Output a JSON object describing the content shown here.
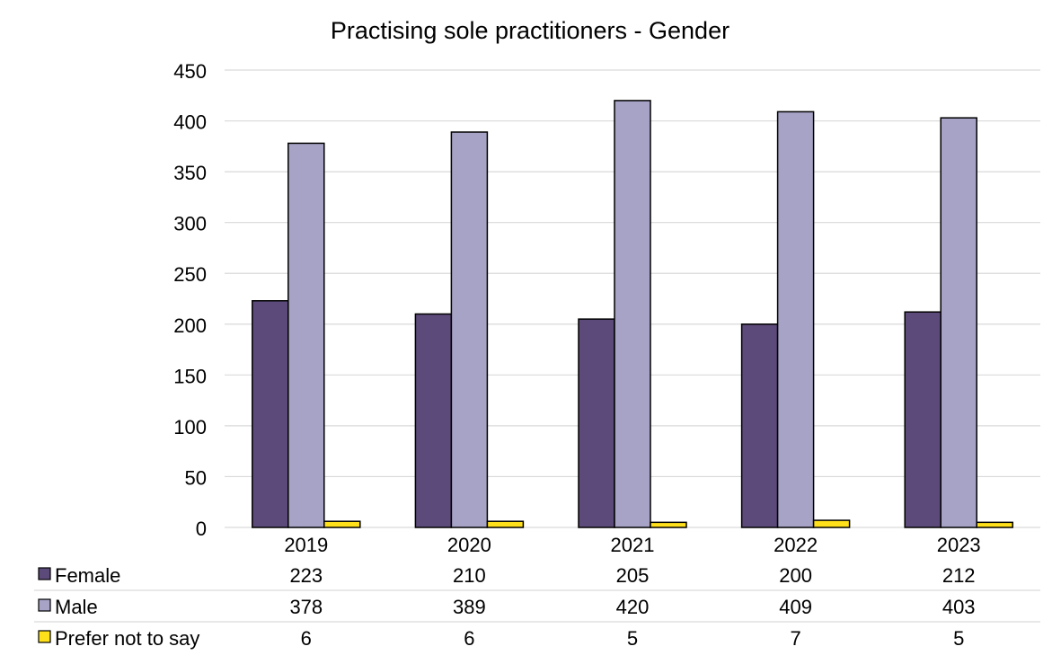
{
  "chart_data": {
    "type": "bar",
    "title": "Practising sole practitioners - Gender",
    "xlabel": "",
    "ylabel": "",
    "categories": [
      "2019",
      "2020",
      "2021",
      "2022",
      "2023"
    ],
    "ylim": [
      0,
      450
    ],
    "yticks": [
      0,
      50,
      100,
      150,
      200,
      250,
      300,
      350,
      400,
      450
    ],
    "grid": true,
    "legend_placement": "data-table-below",
    "series": [
      {
        "name": "Female",
        "color": "#5c4a7a",
        "values": [
          223,
          210,
          205,
          200,
          212
        ]
      },
      {
        "name": "Male",
        "color": "#a6a3c6",
        "values": [
          378,
          389,
          420,
          409,
          403
        ]
      },
      {
        "name": "Prefer not to say",
        "color": "#ffe01a",
        "values": [
          6,
          6,
          5,
          7,
          5
        ]
      }
    ]
  }
}
